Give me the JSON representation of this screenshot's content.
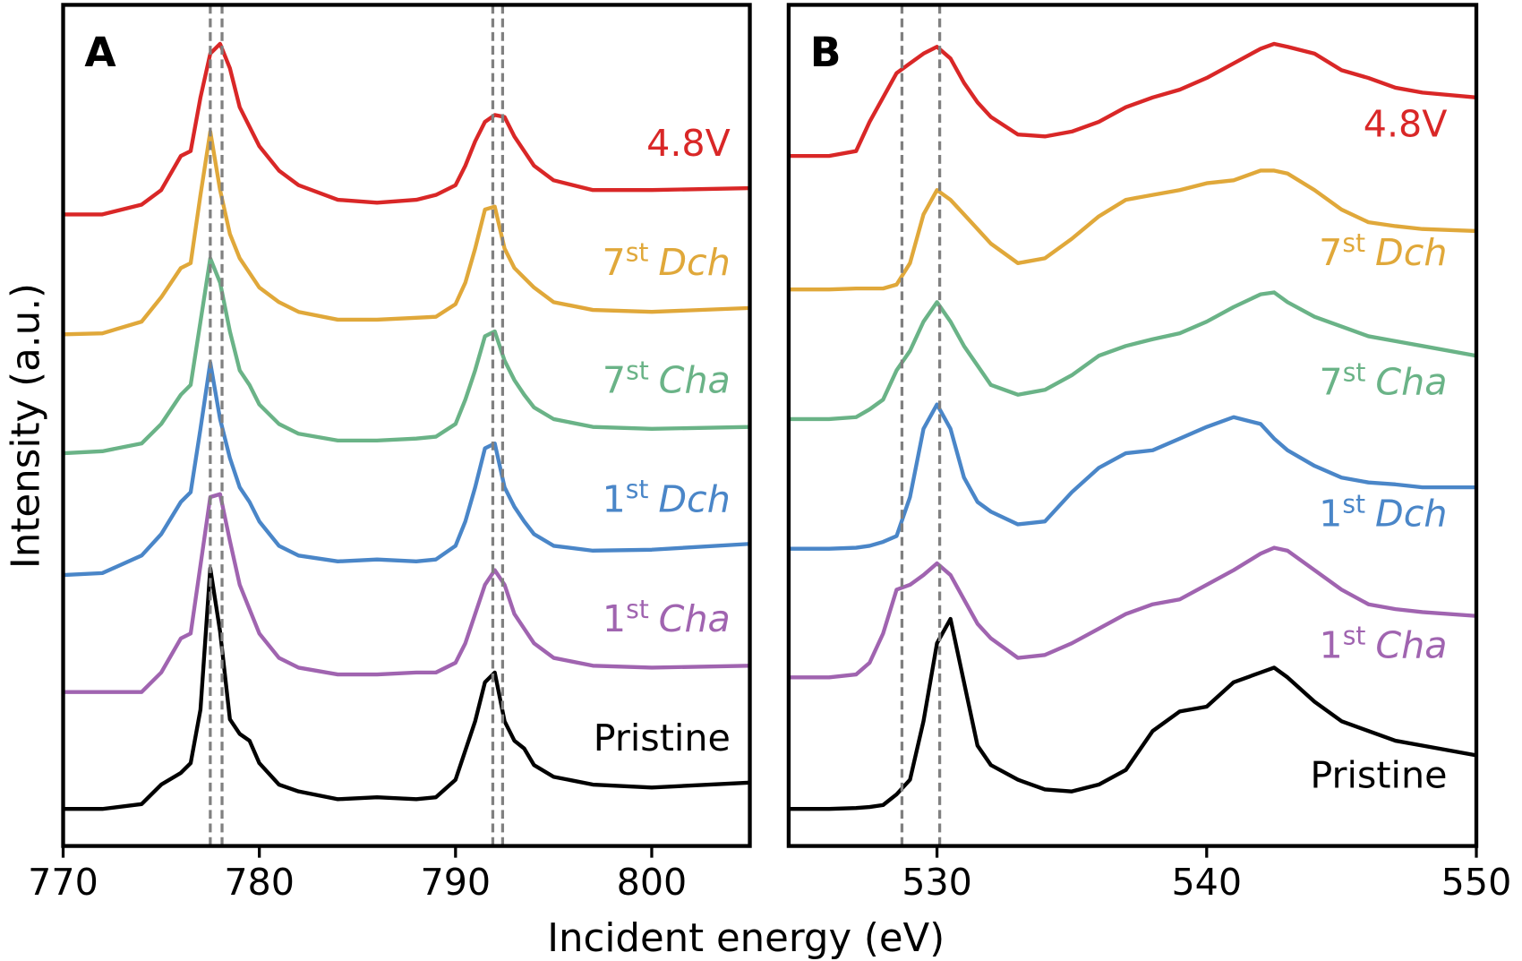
{
  "figure": {
    "xlabel": "Incident energy (eV)",
    "ylabel": "Intensity (a.u.)"
  },
  "chart_data": [
    {
      "type": "line",
      "panel": "A",
      "xlim": [
        770,
        805
      ],
      "xticks": [
        770,
        780,
        790,
        800
      ],
      "ylim": [
        0,
        86.3
      ],
      "dashed_lines": [
        777.5,
        778.1,
        791.9,
        792.4
      ],
      "x": [
        770,
        772,
        774,
        775,
        776,
        776.5,
        777,
        777.5,
        778,
        778.5,
        779,
        779.5,
        780,
        781,
        782,
        784,
        786,
        788,
        789,
        790,
        790.5,
        791,
        791.5,
        792,
        792.5,
        793,
        793.5,
        794,
        795,
        797,
        800,
        805
      ],
      "series": [
        {
          "name": [
            "4.8V"
          ],
          "color": "#d92727",
          "values": [
            64.8,
            64.8,
            65.8,
            67.3,
            70.8,
            71.3,
            76.8,
            81.3,
            82.3,
            79.8,
            75.8,
            73.8,
            71.8,
            69.3,
            67.8,
            66.3,
            66.0,
            66.3,
            66.8,
            67.8,
            69.8,
            72.3,
            74.3,
            75.0,
            74.8,
            72.8,
            71.3,
            69.8,
            68.3,
            67.3,
            67.3,
            67.5
          ]
        },
        {
          "name": [
            "7",
            "st",
            "Dch"
          ],
          "color": "#e0a83a",
          "values": [
            52.5,
            52.6,
            53.8,
            56.3,
            59.3,
            59.8,
            66.8,
            73.3,
            67.3,
            62.8,
            60.3,
            58.8,
            57.3,
            55.8,
            54.8,
            54.0,
            54.0,
            54.2,
            54.3,
            55.6,
            57.8,
            61.3,
            65.3,
            65.6,
            61.3,
            59.3,
            58.3,
            57.3,
            55.8,
            55.0,
            54.8,
            55.2
          ]
        },
        {
          "name": [
            "7",
            "st",
            "Cha"
          ],
          "color": "#6ab387",
          "values": [
            40.3,
            40.5,
            41.3,
            43.3,
            46.3,
            47.3,
            53.8,
            60.3,
            57.8,
            52.8,
            48.8,
            47.3,
            45.3,
            43.3,
            42.3,
            41.6,
            41.6,
            41.8,
            42.0,
            43.3,
            45.8,
            48.8,
            52.3,
            52.8,
            49.8,
            47.8,
            46.3,
            45.0,
            43.8,
            43.0,
            42.8,
            43.0
          ]
        },
        {
          "name": [
            "1",
            "st",
            "Dch"
          ],
          "color": "#4a86c8",
          "values": [
            27.8,
            28.0,
            29.8,
            32.0,
            35.3,
            36.3,
            42.8,
            49.6,
            43.8,
            39.8,
            36.8,
            35.3,
            33.3,
            30.8,
            29.8,
            29.2,
            29.4,
            29.2,
            29.4,
            30.8,
            33.3,
            36.8,
            40.8,
            41.3,
            36.8,
            34.8,
            33.3,
            32.0,
            30.8,
            30.3,
            30.4,
            31.0
          ]
        },
        {
          "name": [
            "1",
            "st",
            "Cha"
          ],
          "color": "#a064b0",
          "values": [
            15.8,
            15.8,
            15.8,
            17.8,
            21.3,
            21.8,
            28.8,
            35.8,
            36.1,
            31.3,
            26.8,
            24.3,
            21.8,
            19.3,
            18.3,
            17.6,
            17.6,
            17.8,
            17.8,
            18.8,
            20.8,
            23.8,
            26.8,
            28.3,
            26.8,
            23.8,
            22.3,
            20.8,
            19.3,
            18.5,
            18.3,
            18.5
          ]
        },
        {
          "name": [
            "Pristine"
          ],
          "color": "#000000",
          "values": [
            3.8,
            3.8,
            4.3,
            6.3,
            7.5,
            8.5,
            14,
            28.5,
            22,
            13,
            11.5,
            10.8,
            8.5,
            6.3,
            5.6,
            4.8,
            5.0,
            4.8,
            5.0,
            6.8,
            9.8,
            12.8,
            16.8,
            17.8,
            12.8,
            10.8,
            10.0,
            8.3,
            7.1,
            6.3,
            6.0,
            6.5
          ]
        }
      ]
    },
    {
      "type": "line",
      "panel": "B",
      "xlim": [
        524.5,
        550
      ],
      "xticks": [
        530,
        540,
        550
      ],
      "ylim": [
        0,
        86.3
      ],
      "dashed_lines": [
        528.7,
        530.1
      ],
      "x": [
        524.5,
        526,
        527,
        527.5,
        528,
        528.5,
        529,
        529.5,
        530,
        530.5,
        531,
        531.5,
        532,
        533,
        534,
        535,
        536,
        537,
        538,
        539,
        540,
        541,
        542,
        542.5,
        543,
        544,
        545,
        546,
        547,
        548,
        550
      ],
      "series": [
        {
          "name": [
            "4.8V"
          ],
          "color": "#d92727",
          "values": [
            70.8,
            70.8,
            71.3,
            74.3,
            76.8,
            79.3,
            80.3,
            81.3,
            82.0,
            80.8,
            78.3,
            76.3,
            74.8,
            73.0,
            72.8,
            73.3,
            74.3,
            75.8,
            76.8,
            77.6,
            78.8,
            80.3,
            81.8,
            82.3,
            82.0,
            81.3,
            79.6,
            78.8,
            77.8,
            77.3,
            76.8
          ]
        },
        {
          "name": [
            "7",
            "st",
            "Dch"
          ],
          "color": "#e0a83a",
          "values": [
            57.1,
            57.1,
            57.2,
            57.2,
            57.2,
            57.6,
            59.8,
            64.8,
            67.3,
            66.3,
            64.8,
            63.3,
            61.8,
            59.8,
            60.3,
            62.3,
            64.6,
            66.3,
            66.8,
            67.3,
            68.0,
            68.3,
            69.3,
            69.3,
            69.0,
            67.3,
            65.3,
            64.0,
            63.6,
            63.3,
            63.1
          ]
        },
        {
          "name": [
            "7",
            "st",
            "Cha"
          ],
          "color": "#6ab387",
          "values": [
            43.8,
            43.8,
            44.0,
            44.8,
            45.8,
            48.8,
            50.8,
            53.8,
            55.8,
            53.8,
            51.3,
            49.3,
            47.3,
            46.3,
            46.8,
            48.3,
            50.3,
            51.3,
            52.0,
            52.6,
            53.8,
            55.3,
            56.6,
            56.8,
            55.8,
            54.3,
            53.3,
            52.3,
            51.8,
            51.3,
            50.3
          ]
        },
        {
          "name": [
            "1",
            "st",
            "Dch"
          ],
          "color": "#4a86c8",
          "values": [
            30.5,
            30.5,
            30.6,
            30.8,
            31.2,
            31.8,
            35.8,
            42.8,
            45.3,
            42.8,
            37.8,
            35.3,
            34.3,
            33.0,
            33.3,
            36.3,
            38.8,
            40.3,
            40.6,
            41.8,
            43.0,
            44.0,
            43.3,
            41.8,
            40.6,
            39.0,
            37.8,
            37.3,
            37.1,
            36.8,
            36.8
          ]
        },
        {
          "name": [
            "1",
            "st",
            "Cha"
          ],
          "color": "#a064b0",
          "values": [
            17.3,
            17.3,
            17.6,
            18.8,
            21.8,
            26.3,
            26.8,
            27.8,
            29.0,
            27.8,
            25.3,
            22.8,
            21.3,
            19.3,
            19.6,
            20.8,
            22.3,
            23.8,
            24.8,
            25.3,
            26.8,
            28.3,
            30.0,
            30.6,
            30.3,
            28.3,
            26.3,
            24.8,
            24.3,
            24.0,
            23.6
          ]
        },
        {
          "name": [
            "Pristine"
          ],
          "color": "#000000",
          "values": [
            3.8,
            3.8,
            3.9,
            4.0,
            4.2,
            5.3,
            6.8,
            12.8,
            20.8,
            23.3,
            16.8,
            10.3,
            8.3,
            6.8,
            5.8,
            5.6,
            6.3,
            7.8,
            11.8,
            13.8,
            14.3,
            16.8,
            17.8,
            18.3,
            17.3,
            14.8,
            12.8,
            11.8,
            10.8,
            10.3,
            9.3
          ]
        }
      ]
    }
  ]
}
